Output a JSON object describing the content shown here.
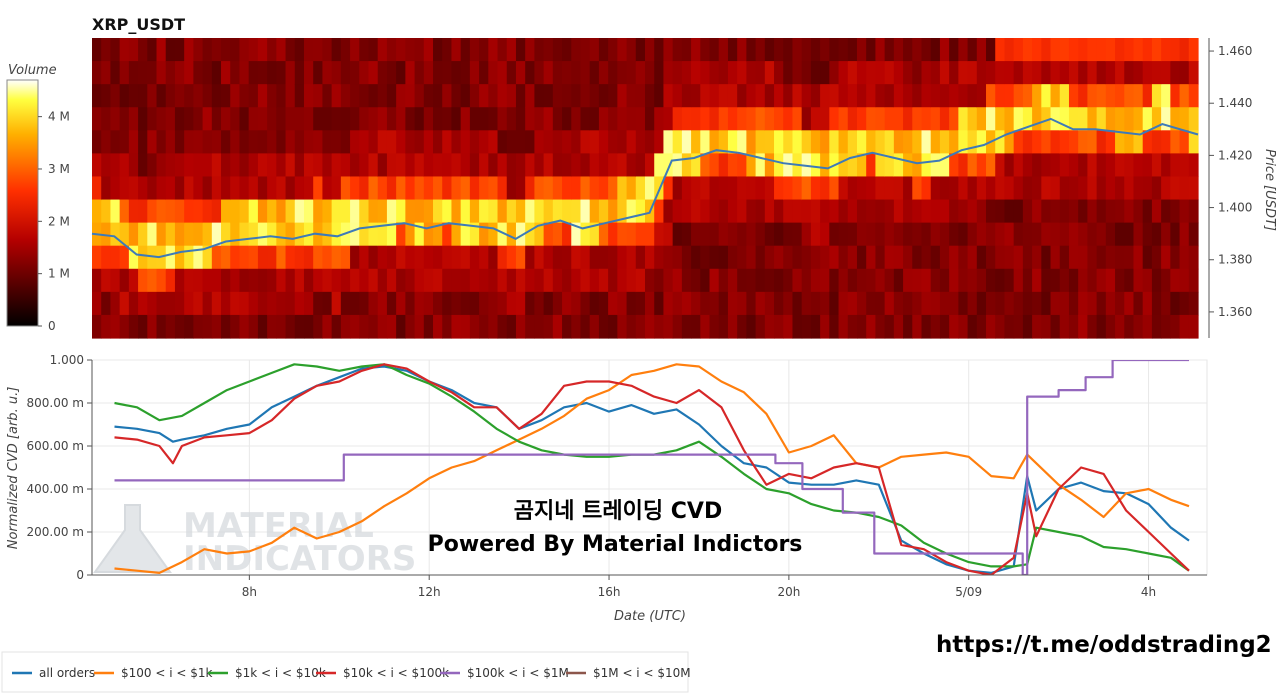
{
  "title": "XRP_USDT",
  "link": "https://t.me/oddstrading2",
  "overlay": {
    "line1": "곰지네 트레이딩 CVD",
    "line2": "Powered By Material Indictors"
  },
  "watermark": {
    "line1": "MATERIAL",
    "line2": "INDICATORS"
  },
  "colorbar": {
    "label": "Volume",
    "ticks": [
      {
        "v": 0,
        "label": "0"
      },
      {
        "v": 1,
        "label": "1 M"
      },
      {
        "v": 2,
        "label": "2 M"
      },
      {
        "v": 3,
        "label": "3 M"
      },
      {
        "v": 4,
        "label": "4 M"
      }
    ],
    "range": [
      0,
      4.7
    ]
  },
  "chart_data": [
    {
      "type": "heatmap",
      "ylabel": "Price [USDT]",
      "ylim": [
        1.35,
        1.465
      ],
      "y_ticks": [
        {
          "v": 1.36,
          "label": "1.360"
        },
        {
          "v": 1.38,
          "label": "1.380"
        },
        {
          "v": 1.4,
          "label": "1.400"
        },
        {
          "v": 1.42,
          "label": "1.420"
        },
        {
          "v": 1.44,
          "label": "1.440"
        },
        {
          "v": 1.46,
          "label": "1.460"
        }
      ],
      "price_line": {
        "x": [
          4.5,
          5,
          5.5,
          6,
          6.5,
          7,
          7.5,
          8,
          8.5,
          9,
          9.5,
          10,
          10.5,
          11,
          11.5,
          12,
          12.5,
          13,
          13.5,
          14,
          14.5,
          15,
          15.5,
          16,
          16.5,
          17,
          17.5,
          18,
          18.5,
          19,
          19.5,
          20,
          20.5,
          21,
          21.5,
          22,
          22.5,
          23,
          23.5,
          24,
          24.5,
          25,
          25.5,
          26,
          26.5,
          27,
          27.5,
          28,
          28.5,
          29.3
        ],
        "y": [
          1.39,
          1.389,
          1.382,
          1.381,
          1.383,
          1.384,
          1.387,
          1.388,
          1.389,
          1.388,
          1.39,
          1.389,
          1.392,
          1.393,
          1.394,
          1.392,
          1.394,
          1.393,
          1.392,
          1.388,
          1.393,
          1.395,
          1.392,
          1.394,
          1.396,
          1.398,
          1.418,
          1.419,
          1.422,
          1.421,
          1.419,
          1.417,
          1.416,
          1.415,
          1.419,
          1.421,
          1.419,
          1.417,
          1.418,
          1.422,
          1.424,
          1.428,
          1.431,
          1.434,
          1.43,
          1.43,
          1.429,
          1.428,
          1.432,
          1.428
        ]
      }
    },
    {
      "type": "line",
      "xlabel": "Date (UTC)",
      "ylabel": "Normalized CVD [arb. u.]",
      "ylim": [
        0,
        1
      ],
      "x_ticks": [
        {
          "v": 8,
          "label": "8h"
        },
        {
          "v": 12,
          "label": "12h"
        },
        {
          "v": 16,
          "label": "16h"
        },
        {
          "v": 20,
          "label": "20h"
        },
        {
          "v": 24,
          "label": "5/09"
        },
        {
          "v": 28,
          "label": "4h"
        }
      ],
      "y_ticks": [
        {
          "v": 0,
          "label": "0"
        },
        {
          "v": 0.2,
          "label": "200.00 m"
        },
        {
          "v": 0.4,
          "label": "400.00 m"
        },
        {
          "v": 0.6,
          "label": "600.00 m"
        },
        {
          "v": 0.8,
          "label": "800.00 m"
        },
        {
          "v": 1.0,
          "label": "1.000"
        }
      ],
      "series": [
        {
          "name": "all orders",
          "color": "#1f77b4",
          "x": [
            5,
            5.5,
            6,
            6.3,
            6.5,
            7,
            7.5,
            8,
            8.5,
            9,
            9.5,
            10,
            10.5,
            11,
            11.5,
            12,
            12.5,
            13,
            13.5,
            14,
            14.5,
            15,
            15.5,
            16,
            16.5,
            17,
            17.5,
            18,
            18.5,
            19,
            19.5,
            20,
            20.5,
            21,
            21.5,
            22,
            22.5,
            23,
            23.5,
            24,
            24.5,
            25,
            25.3,
            25.5,
            26,
            26.5,
            27,
            27.5,
            28,
            28.5,
            28.9
          ],
          "y": [
            0.69,
            0.68,
            0.66,
            0.62,
            0.63,
            0.65,
            0.68,
            0.7,
            0.78,
            0.83,
            0.88,
            0.92,
            0.96,
            0.97,
            0.95,
            0.9,
            0.86,
            0.8,
            0.78,
            0.68,
            0.72,
            0.78,
            0.8,
            0.76,
            0.79,
            0.75,
            0.77,
            0.7,
            0.6,
            0.52,
            0.5,
            0.43,
            0.42,
            0.42,
            0.44,
            0.42,
            0.16,
            0.1,
            0.05,
            0.02,
            0.01,
            0.04,
            0.46,
            0.3,
            0.4,
            0.43,
            0.39,
            0.38,
            0.33,
            0.22,
            0.16
          ]
        },
        {
          "name": "$100 < i < $1k",
          "color": "#ff7f0e",
          "x": [
            5,
            5.5,
            6,
            6.5,
            7,
            7.5,
            8,
            8.5,
            9,
            9.5,
            10,
            10.5,
            11,
            11.5,
            12,
            12.5,
            13,
            13.5,
            14,
            14.5,
            15,
            15.5,
            16,
            16.5,
            17,
            17.5,
            18,
            18.5,
            19,
            19.5,
            20,
            20.5,
            21,
            21.5,
            22,
            22.5,
            23,
            23.5,
            24,
            24.5,
            25,
            25.3,
            25.5,
            26,
            26.5,
            27,
            27.5,
            28,
            28.5,
            28.9
          ],
          "y": [
            0.03,
            0.02,
            0.01,
            0.06,
            0.12,
            0.1,
            0.11,
            0.15,
            0.22,
            0.17,
            0.2,
            0.25,
            0.32,
            0.38,
            0.45,
            0.5,
            0.53,
            0.58,
            0.63,
            0.68,
            0.74,
            0.82,
            0.86,
            0.93,
            0.95,
            0.98,
            0.97,
            0.9,
            0.85,
            0.75,
            0.57,
            0.6,
            0.65,
            0.52,
            0.5,
            0.55,
            0.56,
            0.57,
            0.55,
            0.46,
            0.45,
            0.56,
            0.52,
            0.42,
            0.35,
            0.27,
            0.38,
            0.4,
            0.35,
            0.32
          ]
        },
        {
          "name": "$1k < i < $10k",
          "color": "#2ca02c",
          "x": [
            5,
            5.5,
            6,
            6.5,
            7,
            7.5,
            8,
            8.5,
            9,
            9.5,
            10,
            10.5,
            11,
            11.5,
            12,
            12.5,
            13,
            13.5,
            14,
            14.5,
            15,
            15.5,
            16,
            16.5,
            17,
            17.5,
            18,
            18.5,
            19,
            19.5,
            20,
            20.5,
            21,
            21.5,
            22,
            22.5,
            23,
            23.5,
            24,
            24.5,
            25,
            25.3,
            25.5,
            26,
            26.5,
            27,
            27.5,
            28,
            28.5,
            28.9
          ],
          "y": [
            0.8,
            0.78,
            0.72,
            0.74,
            0.8,
            0.86,
            0.9,
            0.94,
            0.98,
            0.97,
            0.95,
            0.97,
            0.98,
            0.93,
            0.89,
            0.83,
            0.76,
            0.68,
            0.62,
            0.58,
            0.56,
            0.55,
            0.55,
            0.56,
            0.56,
            0.58,
            0.62,
            0.55,
            0.47,
            0.4,
            0.38,
            0.33,
            0.3,
            0.29,
            0.27,
            0.23,
            0.15,
            0.1,
            0.06,
            0.04,
            0.04,
            0.05,
            0.22,
            0.2,
            0.18,
            0.13,
            0.12,
            0.1,
            0.08,
            0.02
          ]
        },
        {
          "name": "$10k < i < $100k",
          "color": "#d62728",
          "x": [
            5,
            5.5,
            6,
            6.3,
            6.5,
            7,
            7.5,
            8,
            8.5,
            9,
            9.5,
            10,
            10.5,
            11,
            11.5,
            12,
            12.5,
            13,
            13.5,
            14,
            14.5,
            15,
            15.5,
            16,
            16.5,
            17,
            17.5,
            18,
            18.5,
            19,
            19.5,
            20,
            20.5,
            21,
            21.5,
            22,
            22.5,
            23,
            23.5,
            24,
            24.5,
            25,
            25.3,
            25.5,
            26,
            26.5,
            27,
            27.5,
            28,
            28.5,
            28.9
          ],
          "y": [
            0.64,
            0.63,
            0.6,
            0.52,
            0.6,
            0.64,
            0.65,
            0.66,
            0.72,
            0.82,
            0.88,
            0.9,
            0.95,
            0.98,
            0.96,
            0.9,
            0.85,
            0.78,
            0.78,
            0.68,
            0.75,
            0.88,
            0.9,
            0.9,
            0.88,
            0.83,
            0.8,
            0.86,
            0.78,
            0.58,
            0.42,
            0.47,
            0.45,
            0.5,
            0.52,
            0.5,
            0.14,
            0.12,
            0.06,
            0.02,
            0.0,
            0.08,
            0.38,
            0.18,
            0.4,
            0.5,
            0.47,
            0.3,
            0.2,
            0.1,
            0.02
          ]
        },
        {
          "name": "$100k < i < $1M",
          "color": "#9467bd",
          "x": [
            5,
            10.1,
            10.1,
            19.7,
            19.7,
            20.3,
            20.3,
            21.2,
            21.2,
            21.9,
            21.9,
            23.2,
            23.2,
            25.2,
            25.2,
            25.3,
            25.3,
            26.0,
            26.0,
            26.6,
            26.6,
            27.2,
            27.2,
            28.0,
            28.0,
            28.9
          ],
          "y": [
            0.44,
            0.44,
            0.56,
            0.56,
            0.52,
            0.52,
            0.4,
            0.4,
            0.29,
            0.29,
            0.1,
            0.1,
            0.1,
            0.1,
            0.0,
            0.0,
            0.83,
            0.83,
            0.86,
            0.86,
            0.92,
            0.92,
            1.0,
            1.0,
            1.0,
            1.0
          ]
        },
        {
          "name": "$1M < i < $10M",
          "color": "#8c564b",
          "x": [],
          "y": []
        }
      ]
    }
  ]
}
